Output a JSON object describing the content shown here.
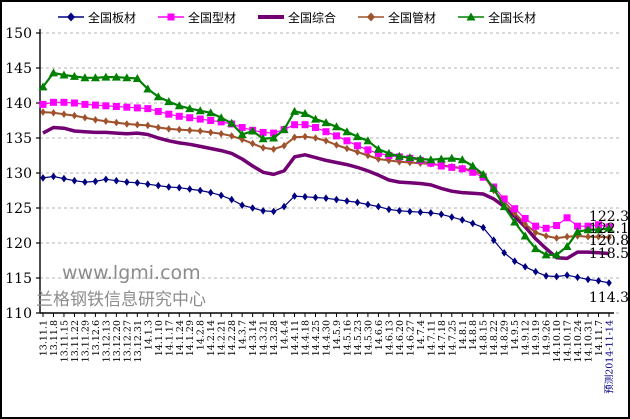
{
  "legend": {
    "items": [
      {
        "label": "全国板材",
        "color": "#000080",
        "marker": "diamond"
      },
      {
        "label": "全国型材",
        "color": "#FF00FF",
        "marker": "square"
      },
      {
        "label": "全国综合",
        "color": "#730073",
        "marker": "none"
      },
      {
        "label": "全国管材",
        "color": "#A0522D",
        "marker": "diamond"
      },
      {
        "label": "全国长材",
        "color": "#008000",
        "marker": "triangle"
      }
    ]
  },
  "watermark": {
    "line1": "www.lgmi.com",
    "line2": "兰格钢铁信息研究中心",
    "color": "#8c8c8c"
  },
  "chart_data": {
    "type": "line",
    "title": "",
    "xlabel": "",
    "ylabel": "",
    "ylim": [
      110,
      150
    ],
    "y_ticks": [
      150,
      145,
      140,
      135,
      130,
      125,
      120,
      115,
      110
    ],
    "grid": "horizontal-dashed",
    "legend_position": "top",
    "forecast_label": "预测2014-11-14",
    "forecast_color": "#000080",
    "categories": [
      "13.11.1",
      "13.11.8",
      "13.11.15",
      "13.11.22",
      "13.11.29",
      "13.12.6",
      "13.12.13",
      "13.12.20",
      "13.12.27",
      "13.12.31",
      "14.1.3",
      "14.1.10",
      "14.1.17",
      "14.1.24",
      "14.1.29",
      "14.2.8",
      "14.2.14",
      "14.2.21",
      "14.2.28",
      "14.3.7",
      "14.3.14",
      "14.3.21",
      "14.3.28",
      "14.4.4",
      "14.4.11",
      "14.4.18",
      "14.4.25",
      "14.4.30",
      "14.5.9",
      "14.5.16",
      "14.5.23",
      "14.5.30",
      "14.6.6",
      "14.6.13",
      "14.6.20",
      "14.6.27",
      "14.7.4",
      "14.7.11",
      "14.7.18",
      "14.7.25",
      "14.8.1",
      "14.8.8",
      "14.8.15",
      "14.8.22",
      "14.8.29",
      "14.9.5",
      "14.9.12",
      "14.9.19",
      "14.9.26",
      "14.10.10",
      "14.10.17",
      "14.10.24",
      "14.10.31",
      "14.11.7",
      "预测2014-11-14"
    ],
    "series": [
      {
        "name": "全国综合",
        "color": "#730073",
        "marker": "none",
        "line_width": 3.5,
        "end_label": "118.5",
        "values": [
          135.7,
          136.5,
          136.4,
          136.0,
          135.9,
          135.8,
          135.8,
          135.7,
          135.6,
          135.7,
          135.5,
          135.0,
          134.6,
          134.3,
          134.1,
          133.8,
          133.5,
          133.2,
          132.8,
          132.0,
          131.0,
          130.1,
          129.8,
          130.3,
          132.3,
          132.6,
          132.2,
          131.8,
          131.5,
          131.2,
          130.8,
          130.3,
          129.7,
          129.0,
          128.7,
          128.6,
          128.5,
          128.3,
          127.8,
          127.4,
          127.2,
          127.1,
          127.0,
          126.3,
          125.2,
          123.8,
          122.3,
          120.6,
          119.2,
          117.9,
          117.8,
          118.7,
          118.7,
          118.6,
          118.5
        ]
      },
      {
        "name": "全国管材",
        "color": "#A0522D",
        "marker": "diamond",
        "line_width": 2,
        "end_label": "120.8",
        "values": [
          138.7,
          138.6,
          138.4,
          138.2,
          137.9,
          137.6,
          137.4,
          137.2,
          137.0,
          136.9,
          136.8,
          136.5,
          136.3,
          136.2,
          136.1,
          136.0,
          135.8,
          135.6,
          135.3,
          134.8,
          134.2,
          133.6,
          133.4,
          133.9,
          135.1,
          135.2,
          135.0,
          134.6,
          134.0,
          133.5,
          133.0,
          132.5,
          132.0,
          131.8,
          131.6,
          131.5,
          131.4,
          131.3,
          131.1,
          130.9,
          130.7,
          130.3,
          129.8,
          127.5,
          125.9,
          124.3,
          122.7,
          121.5,
          121.0,
          120.7,
          120.9,
          121.0,
          120.9,
          120.9,
          120.8
        ]
      },
      {
        "name": "全国型材",
        "color": "#FF00FF",
        "marker": "square",
        "line_width": 1.2,
        "end_label": "122.3",
        "values": [
          139.8,
          140.1,
          140.1,
          140.0,
          139.8,
          139.7,
          139.6,
          139.5,
          139.4,
          139.3,
          139.2,
          138.8,
          138.4,
          138.1,
          137.9,
          137.7,
          137.5,
          137.3,
          137.0,
          136.5,
          136.1,
          135.8,
          135.7,
          136.2,
          136.9,
          136.9,
          136.5,
          135.9,
          135.3,
          134.6,
          133.9,
          133.3,
          132.8,
          132.5,
          132.3,
          132.1,
          131.8,
          131.4,
          131.0,
          130.8,
          130.6,
          130.1,
          129.4,
          128.0,
          126.3,
          124.9,
          123.5,
          122.4,
          122.1,
          122.5,
          123.6,
          122.4,
          122.4,
          122.6,
          122.3
        ]
      },
      {
        "name": "全国长材",
        "color": "#008000",
        "marker": "triangle",
        "line_width": 2.2,
        "end_label": "122.1",
        "values": [
          142.3,
          144.3,
          144.0,
          143.8,
          143.6,
          143.6,
          143.7,
          143.7,
          143.6,
          143.5,
          142.0,
          140.9,
          140.2,
          139.6,
          139.2,
          138.9,
          138.6,
          137.9,
          137.1,
          135.5,
          136.0,
          134.9,
          135.0,
          136.2,
          138.8,
          138.5,
          137.7,
          137.2,
          136.6,
          135.9,
          135.2,
          134.6,
          133.4,
          132.8,
          132.4,
          132.2,
          132.0,
          131.9,
          132.0,
          132.1,
          131.9,
          131.0,
          129.8,
          127.8,
          125.2,
          123.0,
          121.0,
          119.2,
          118.3,
          118.3,
          119.5,
          121.6,
          121.9,
          121.9,
          122.1
        ]
      },
      {
        "name": "全国板材",
        "color": "#000080",
        "marker": "diamond",
        "line_width": 1.2,
        "end_label": "114.3",
        "values": [
          129.3,
          129.5,
          129.2,
          128.9,
          128.7,
          128.8,
          129.1,
          128.9,
          128.7,
          128.6,
          128.4,
          128.2,
          128.0,
          127.9,
          127.7,
          127.5,
          127.2,
          126.8,
          126.2,
          125.4,
          125.0,
          124.6,
          124.5,
          125.2,
          126.7,
          126.6,
          126.5,
          126.4,
          126.2,
          126.0,
          125.8,
          125.5,
          125.2,
          124.8,
          124.6,
          124.5,
          124.4,
          124.3,
          124.1,
          123.7,
          123.3,
          122.8,
          122.2,
          120.4,
          118.6,
          117.4,
          116.6,
          115.9,
          115.3,
          115.2,
          115.4,
          115.1,
          114.8,
          114.6,
          114.3
        ]
      }
    ]
  }
}
